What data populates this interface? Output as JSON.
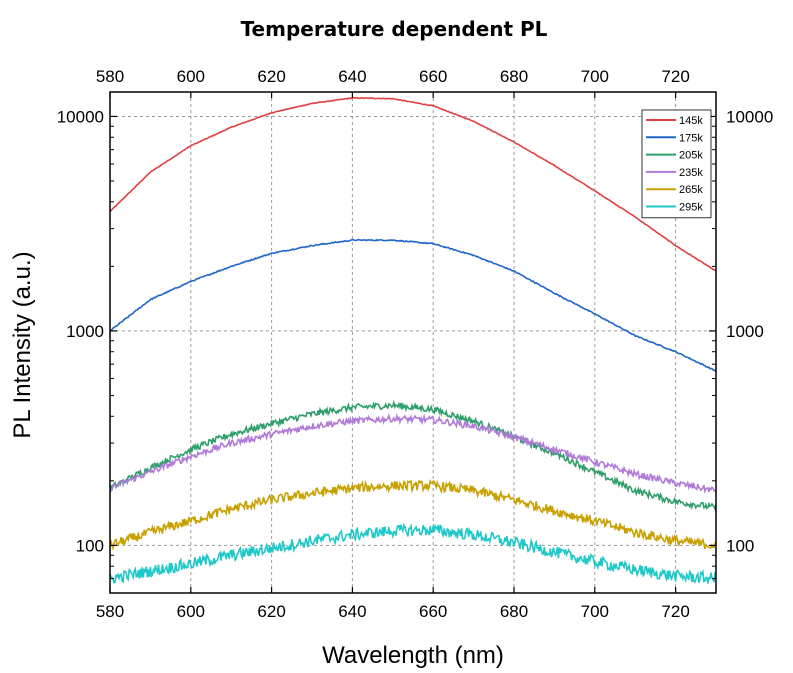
{
  "chart_data": {
    "type": "line",
    "title": "Temperature dependent PL",
    "xlabel": "Wavelength (nm)",
    "ylabel": "PL Intensity (a.u.)",
    "xlim": [
      580,
      730
    ],
    "ylim": [
      60,
      13000
    ],
    "yscale": "log",
    "grid": true,
    "x_ticks": [
      580,
      600,
      620,
      640,
      660,
      680,
      700,
      720
    ],
    "x_tick_labels": [
      "580",
      "600",
      "620",
      "640",
      "660",
      "680",
      "700",
      "720"
    ],
    "y_ticks": [
      100,
      1000,
      10000
    ],
    "y_tick_labels": [
      "100",
      "1000",
      "10000"
    ],
    "legend_position": "top-right",
    "x": [
      580,
      590,
      600,
      610,
      620,
      630,
      640,
      650,
      660,
      670,
      680,
      690,
      700,
      710,
      720,
      730
    ],
    "series": [
      {
        "name": "145k",
        "color": "#e04040",
        "values": [
          3600,
          5500,
          7300,
          8900,
          10400,
          11500,
          12200,
          12100,
          11200,
          9500,
          7600,
          5900,
          4500,
          3400,
          2500,
          1900
        ]
      },
      {
        "name": "175k",
        "color": "#2166c8",
        "values": [
          1000,
          1400,
          1700,
          2000,
          2300,
          2500,
          2650,
          2650,
          2550,
          2250,
          1900,
          1500,
          1200,
          950,
          800,
          650
        ]
      },
      {
        "name": "205k",
        "color": "#2e9e6a",
        "values": [
          185,
          230,
          280,
          330,
          370,
          410,
          440,
          450,
          430,
          380,
          320,
          270,
          220,
          180,
          160,
          150
        ]
      },
      {
        "name": "235k",
        "color": "#b07ad8",
        "values": [
          185,
          220,
          260,
          300,
          330,
          360,
          380,
          390,
          385,
          360,
          320,
          280,
          245,
          215,
          195,
          180
        ]
      },
      {
        "name": "265k",
        "color": "#c8a000",
        "values": [
          100,
          115,
          130,
          148,
          163,
          175,
          185,
          190,
          190,
          180,
          163,
          145,
          130,
          115,
          105,
          100
        ]
      },
      {
        "name": "295k",
        "color": "#1fc8c8",
        "values": [
          70,
          76,
          82,
          90,
          97,
          105,
          112,
          117,
          118,
          112,
          103,
          93,
          84,
          77,
          72,
          70
        ]
      }
    ]
  }
}
